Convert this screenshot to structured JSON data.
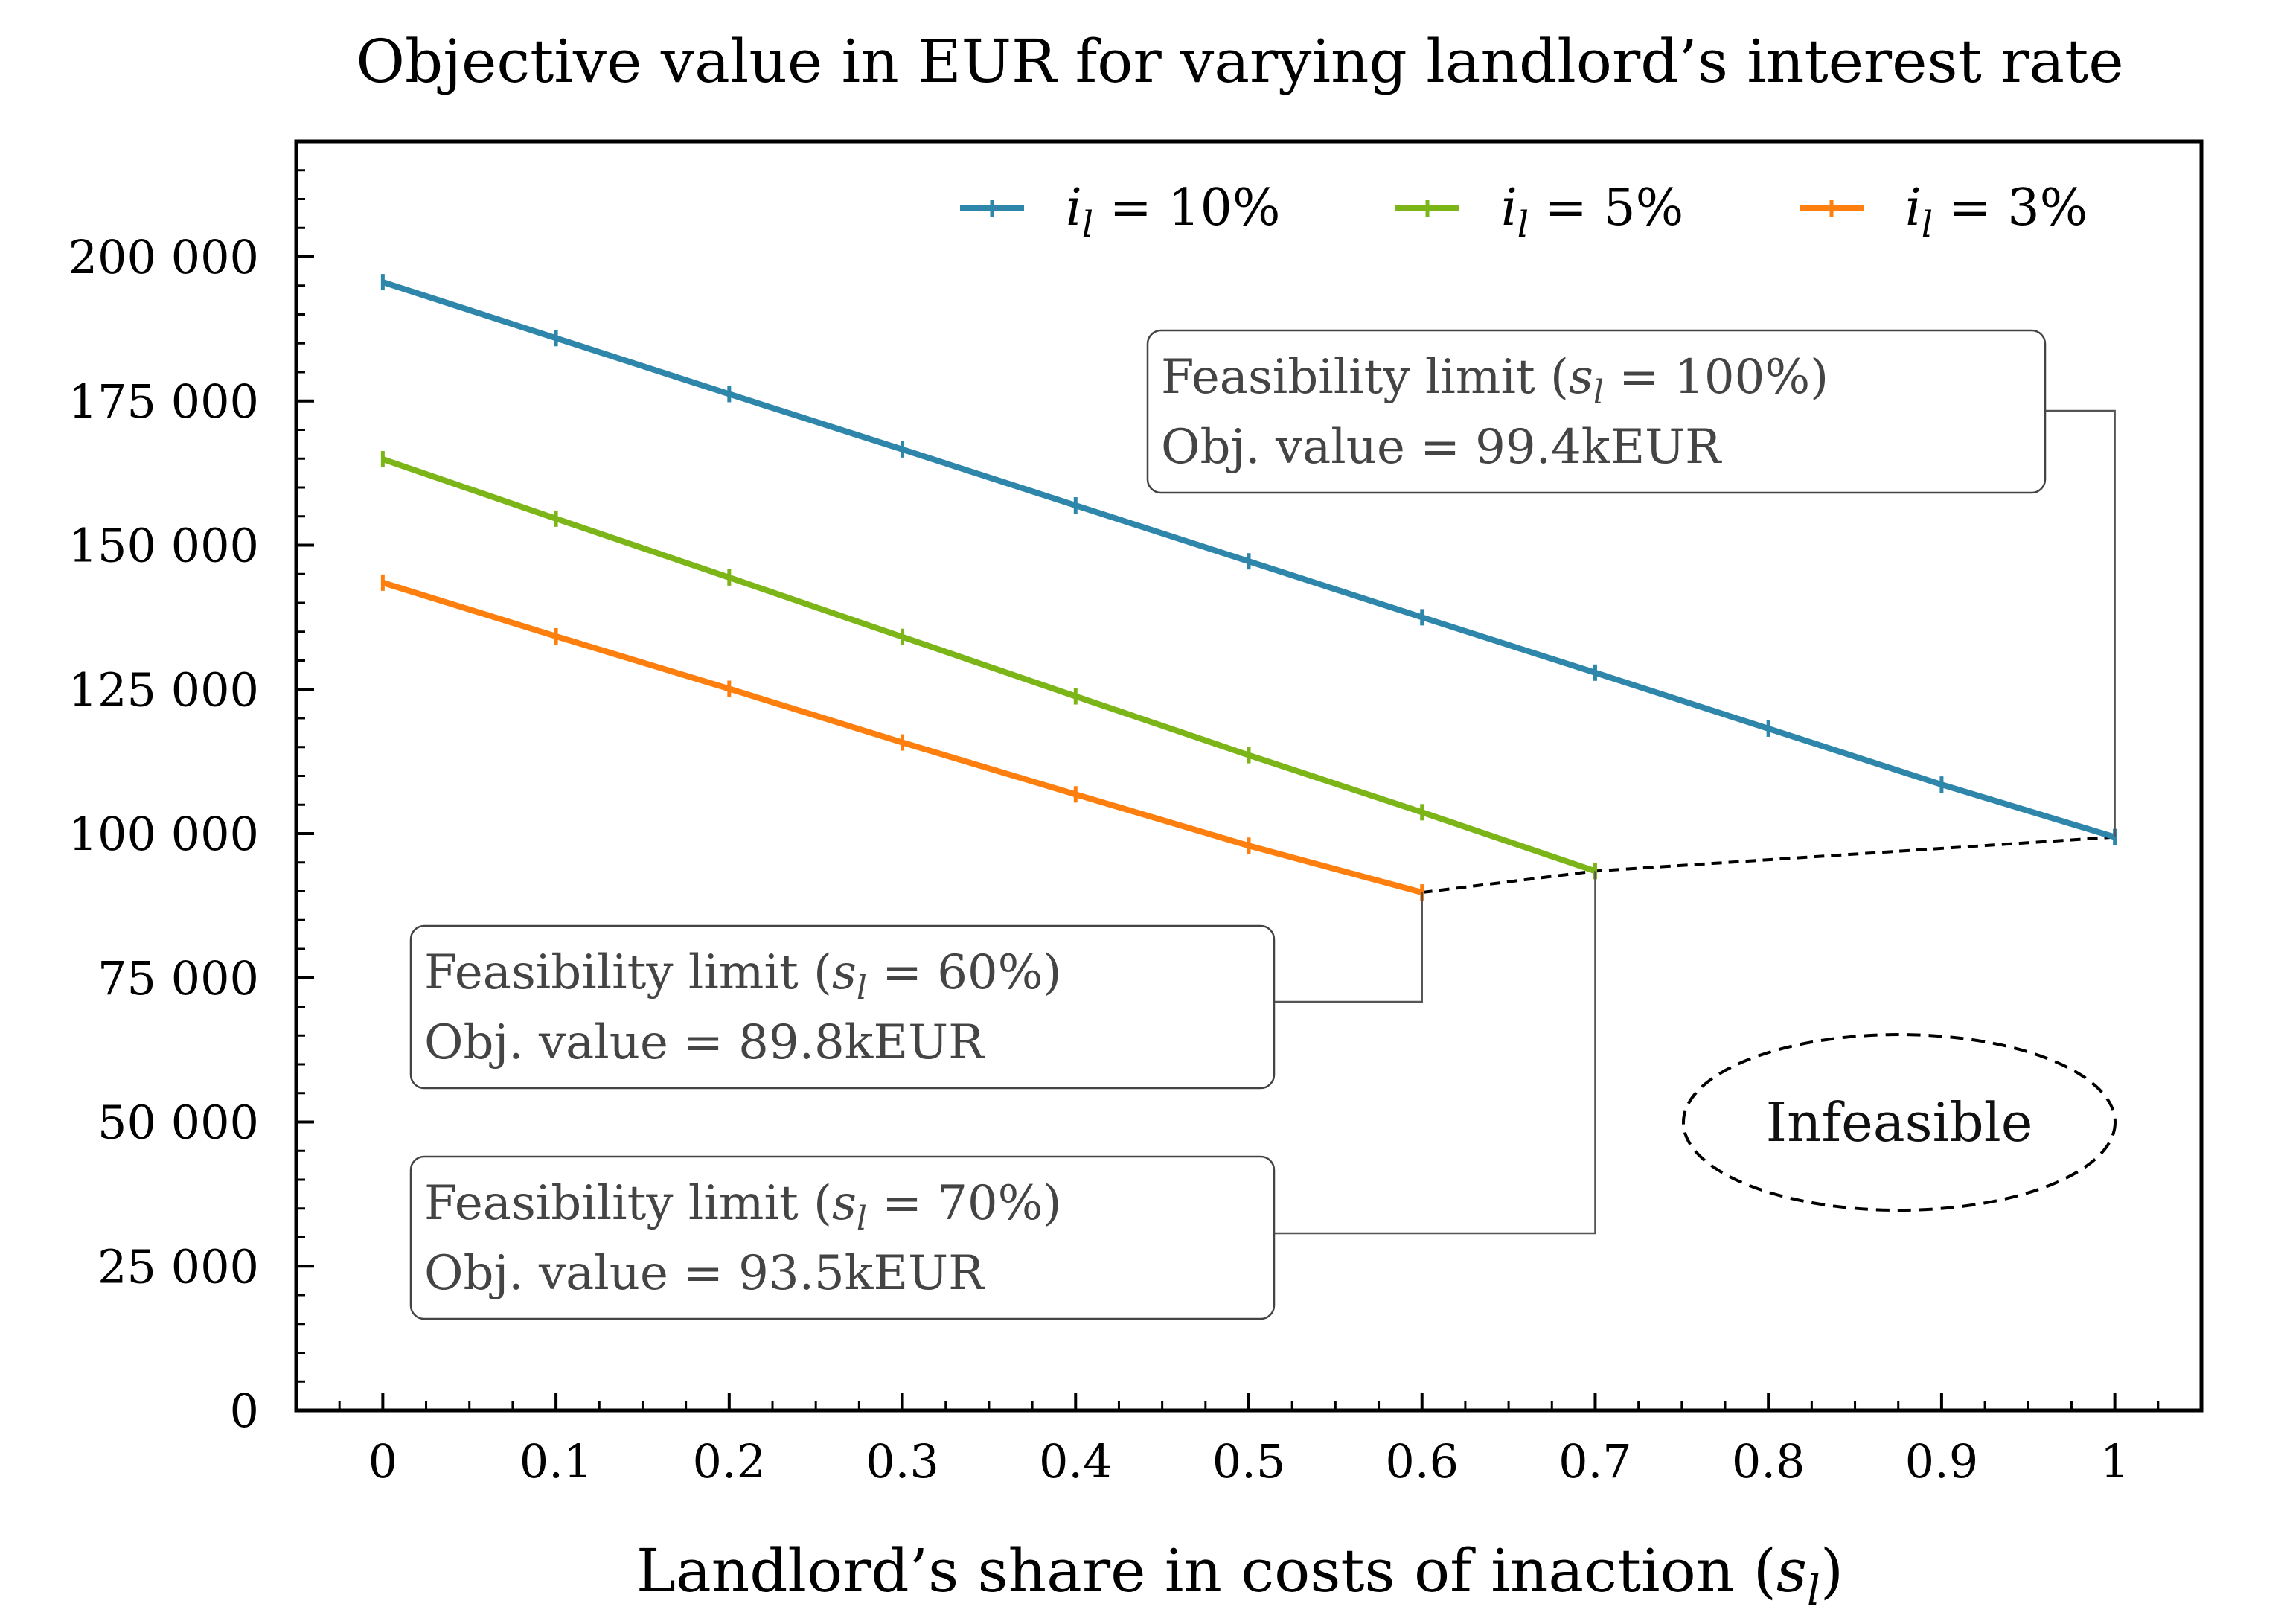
{
  "chart_data": {
    "type": "line",
    "title": "Objective value in EUR for varying landlord’s interest rate",
    "xlabel": "Landlord’s share in costs of inaction (",
    "xlabel_symbol": "s",
    "xlabel_subscript": "l",
    "xlabel_close": ")",
    "ylabel": "",
    "xlim": [
      -0.05,
      1.05
    ],
    "ylim": [
      0,
      220000
    ],
    "x_ticks": [
      0,
      0.1,
      0.2,
      0.3,
      0.4,
      0.5,
      0.6,
      0.7,
      0.8,
      0.9,
      1
    ],
    "x_tick_labels": [
      "0",
      "0.1",
      "0.2",
      "0.3",
      "0.4",
      "0.5",
      "0.6",
      "0.7",
      "0.8",
      "0.9",
      "1"
    ],
    "y_ticks": [
      0,
      25000,
      50000,
      75000,
      100000,
      125000,
      150000,
      175000,
      200000
    ],
    "y_tick_labels": [
      "0",
      "25 000",
      "50 000",
      "75 000",
      "100 000",
      "125 000",
      "150 000",
      "175 000",
      "200 000"
    ],
    "legend_position": "top-right",
    "grid": false,
    "series": [
      {
        "name": "i_l = 10%",
        "legend_symbol": "i",
        "legend_subscript": "l",
        "legend_value": "= 10%",
        "color": "#2e86ab",
        "x": [
          0,
          0.1,
          0.2,
          0.3,
          0.4,
          0.5,
          0.6,
          0.7,
          0.8,
          0.9,
          1
        ],
        "values": [
          195600,
          185900,
          176200,
          166600,
          156900,
          147200,
          137500,
          127900,
          118200,
          108500,
          99400
        ]
      },
      {
        "name": "i_l = 5%",
        "legend_symbol": "i",
        "legend_subscript": "l",
        "legend_value": "= 5%",
        "color": "#7cb518",
        "x": [
          0,
          0.1,
          0.2,
          0.3,
          0.4,
          0.5,
          0.6,
          0.7
        ],
        "values": [
          164900,
          154600,
          144400,
          134100,
          123800,
          113600,
          103700,
          93500
        ]
      },
      {
        "name": "i_l = 3%",
        "legend_symbol": "i",
        "legend_subscript": "l",
        "legend_value": "= 3%",
        "color": "#ff7f0e",
        "x": [
          0,
          0.1,
          0.2,
          0.3,
          0.4,
          0.5,
          0.6
        ],
        "values": [
          143500,
          134200,
          125100,
          115800,
          106800,
          97900,
          89800
        ]
      }
    ],
    "feasibility_frontier": {
      "x": [
        0.6,
        0.7,
        1
      ],
      "values": [
        89800,
        93500,
        99400
      ],
      "style": "dashed",
      "color": "#000000"
    },
    "annotations": [
      {
        "line1_prefix": "Feasibility limit (",
        "line1_symbol": "s",
        "line1_subscript": "l",
        "line1_value": " = 100%)",
        "line2": "Obj. value = 99.4kEUR",
        "target_x": 1,
        "target_y": 99400
      },
      {
        "line1_prefix": "Feasibility limit (",
        "line1_symbol": "s",
        "line1_subscript": "l",
        "line1_value": " = 60%)",
        "line2": "Obj. value = 89.8kEUR",
        "target_x": 0.6,
        "target_y": 89800
      },
      {
        "line1_prefix": "Feasibility limit (",
        "line1_symbol": "s",
        "line1_subscript": "l",
        "line1_value": " = 70%)",
        "line2": "Obj. value = 93.5kEUR",
        "target_x": 0.7,
        "target_y": 93500
      }
    ],
    "region_label": "Infeasible"
  }
}
